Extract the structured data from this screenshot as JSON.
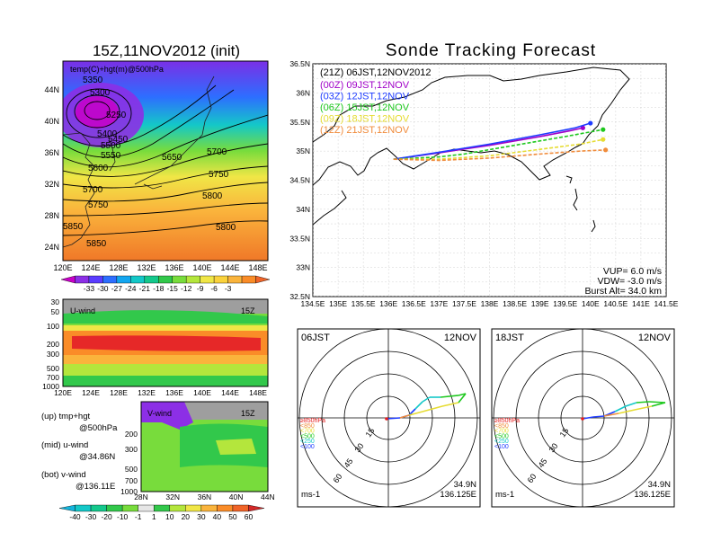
{
  "left_title": "15Z,11NOV2012 (init)",
  "right_title": "Sonde Tracking Forecast",
  "map500": {
    "label": "temp(C)+hgt(m)@500hPa",
    "lon_ticks": [
      "120E",
      "124E",
      "128E",
      "132E",
      "136E",
      "140E",
      "144E",
      "148E"
    ],
    "lat_ticks": [
      "24N",
      "28N",
      "32N",
      "36N",
      "40N",
      "44N"
    ],
    "contour_labels": [
      "5350",
      "5300",
      "5250",
      "5400",
      "5450",
      "5500",
      "5550",
      "5600",
      "5650",
      "5700",
      "5700",
      "5750",
      "5750",
      "5800",
      "5800",
      "5850",
      "5850"
    ],
    "colorbar_ticks": [
      "-33",
      "-30",
      "-27",
      "-24",
      "-21",
      "-18",
      "-15",
      "-12",
      "-9",
      "-6",
      "-3"
    ],
    "colorbar_colors": [
      "#c800c8",
      "#8c2fe6",
      "#5a3cff",
      "#2d6eff",
      "#13a6f0",
      "#14c8c8",
      "#14c88c",
      "#32c84b",
      "#78dc3c",
      "#b4e63c",
      "#f0e646",
      "#fad23c",
      "#fab43c",
      "#fa8c28",
      "#f06428"
    ]
  },
  "uwind": {
    "label": "U-wind",
    "time": "15Z",
    "y_ticks": [
      "30",
      "50",
      "100",
      "200",
      "300",
      "500",
      "700",
      "1000"
    ],
    "x_ticks": [
      "120E",
      "124E",
      "128E",
      "132E",
      "136E",
      "140E",
      "144E",
      "148E"
    ]
  },
  "vwind": {
    "label": "V-wind",
    "time": "15Z",
    "y_ticks": [
      "200",
      "300",
      "500",
      "700",
      "1000"
    ],
    "x_ticks": [
      "28N",
      "32N",
      "36N",
      "40N",
      "44N"
    ]
  },
  "notes": [
    "(up) tmp+hgt",
    "@500hPa",
    "(mid) u-wind",
    "@34.86N",
    "(bot) v-wind",
    "@136.11E"
  ],
  "wind_colorbar": {
    "ticks": [
      "-40",
      "-30",
      "-20",
      "-10",
      "-1",
      "1",
      "10",
      "20",
      "30",
      "40",
      "50",
      "60"
    ],
    "colors": [
      "#14b4dc",
      "#14c8c8",
      "#14c88c",
      "#32c84b",
      "#78dc3c",
      "#e6e6e6",
      "#32c84b",
      "#b4e63c",
      "#f0e646",
      "#fab43c",
      "#fa8c28",
      "#f06428",
      "#d22828"
    ]
  },
  "chart_data": {
    "type": "line",
    "title": "Sonde Tracking Forecast",
    "xlim": [
      134.5,
      141.5
    ],
    "ylim": [
      32.5,
      36.5
    ],
    "x_ticks": [
      "134.5E",
      "135E",
      "135.5E",
      "136E",
      "136.5E",
      "137E",
      "137.5E",
      "138E",
      "138.5E",
      "139E",
      "139.5E",
      "140E",
      "140.5E",
      "141E",
      "141.5E"
    ],
    "y_ticks": [
      "32.5N",
      "33N",
      "33.5N",
      "34N",
      "34.5N",
      "35N",
      "35.5N",
      "36N",
      "36.5N"
    ],
    "legend_header": "(21Z) 06JST,12NOV2012",
    "series": [
      {
        "name": "(00Z) 09JST,12NOV",
        "color": "#a000c8",
        "x": [
          136.1,
          137.0,
          138.0,
          139.0,
          139.6,
          139.85
        ],
        "y": [
          34.86,
          34.97,
          35.1,
          35.25,
          35.35,
          35.4
        ]
      },
      {
        "name": "(03Z) 12JST,12NOV",
        "color": "#1e3cff",
        "x": [
          136.1,
          137.0,
          138.0,
          139.0,
          139.7,
          140.0
        ],
        "y": [
          34.86,
          34.98,
          35.12,
          35.28,
          35.4,
          35.48
        ]
      },
      {
        "name": "(06Z) 15JST,12NOV",
        "color": "#1ec81e",
        "x": [
          136.1,
          137.0,
          137.5,
          138.5,
          139.5,
          140.25
        ],
        "y": [
          34.86,
          34.9,
          34.95,
          35.1,
          35.25,
          35.37
        ]
      },
      {
        "name": "(09Z) 18JST,12NOV",
        "color": "#e6dc32",
        "x": [
          136.1,
          137.0,
          138.0,
          139.0,
          139.8,
          140.25
        ],
        "y": [
          34.86,
          34.86,
          34.92,
          35.03,
          35.12,
          35.2
        ]
      },
      {
        "name": "(12Z) 21JST,12NOV",
        "color": "#f08c3c",
        "x": [
          136.1,
          137.0,
          138.0,
          139.0,
          139.8,
          140.3
        ],
        "y": [
          34.86,
          34.84,
          34.88,
          34.95,
          35.0,
          35.02
        ]
      }
    ],
    "annotations": [
      "VUP= 6.0 m/s",
      "VDW= -3.0 m/s",
      "Burst Alt= 34.0 km"
    ]
  },
  "polar": [
    {
      "time": "06JST",
      "date": "12NOV",
      "lat": "34.9N",
      "lon": "136.125E",
      "unit": "ms-1",
      "rings": [
        "15",
        "30",
        "45",
        "60"
      ],
      "levels": [
        {
          "name": "≥850hPa",
          "color": "#e61e1e"
        },
        {
          "name": "<850",
          "color": "#f08c3c"
        },
        {
          "name": "<700",
          "color": "#e6dc32"
        },
        {
          "name": "<500",
          "color": "#1ec81e"
        },
        {
          "name": "<250",
          "color": "#14c8c8"
        },
        {
          "name": "<100",
          "color": "#1e3cff"
        }
      ]
    },
    {
      "time": "18JST",
      "date": "12NOV",
      "lat": "34.9N",
      "lon": "136.125E",
      "unit": "ms-1",
      "rings": [
        "15",
        "30",
        "45",
        "60"
      ],
      "levels": [
        {
          "name": "≥850hPa",
          "color": "#e61e1e"
        },
        {
          "name": "<850",
          "color": "#f08c3c"
        },
        {
          "name": "<700",
          "color": "#e6dc32"
        },
        {
          "name": "<500",
          "color": "#1ec81e"
        },
        {
          "name": "<250",
          "color": "#14c8c8"
        },
        {
          "name": "<100",
          "color": "#1e3cff"
        }
      ]
    }
  ]
}
